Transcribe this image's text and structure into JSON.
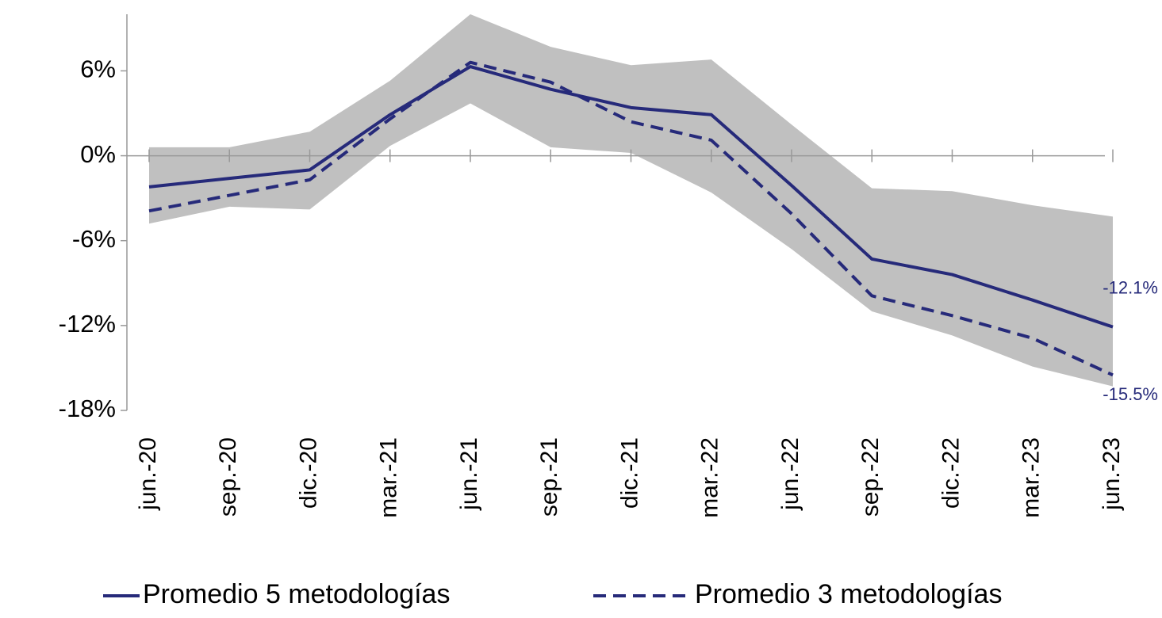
{
  "chart_data": {
    "type": "line",
    "categories": [
      "jun.-20",
      "sep.-20",
      "dic.-20",
      "mar.-21",
      "jun.-21",
      "sep.-21",
      "dic.-21",
      "mar.-22",
      "jun.-22",
      "sep.-22",
      "dic.-22",
      "mar.-23",
      "jun.-23"
    ],
    "series": [
      {
        "name": "Promedio 5 metodologías",
        "color": "#262a7a",
        "dash": false,
        "values": [
          -2.2,
          -1.6,
          -1.0,
          2.9,
          6.3,
          4.7,
          3.4,
          2.9,
          -2.1,
          -7.3,
          -8.4,
          -10.2,
          -12.1
        ],
        "value_labels": [
          null,
          null,
          null,
          null,
          null,
          null,
          null,
          null,
          null,
          null,
          null,
          null,
          "-12.1%"
        ]
      },
      {
        "name": "Promedio 3 metodologías",
        "color": "#262a7a",
        "dash": true,
        "values": [
          -3.9,
          -2.8,
          -1.7,
          2.6,
          6.6,
          5.2,
          2.4,
          1.1,
          -4.1,
          -9.9,
          -11.3,
          -12.9,
          -15.5
        ],
        "value_labels": [
          null,
          null,
          null,
          null,
          null,
          null,
          null,
          null,
          null,
          null,
          null,
          null,
          "-15.5%"
        ]
      }
    ],
    "band": {
      "color": "#c0c0c0",
      "upper": [
        0.6,
        0.6,
        1.7,
        5.3,
        10.0,
        7.7,
        6.4,
        6.8,
        2.2,
        -2.3,
        -2.5,
        -3.5,
        -4.3
      ],
      "lower": [
        -4.8,
        -3.6,
        -3.8,
        0.7,
        3.7,
        0.6,
        0.2,
        -2.6,
        -6.6,
        -11.0,
        -12.7,
        -14.9,
        -16.3
      ]
    },
    "ylim": [
      -18,
      10
    ],
    "yticks": [
      {
        "value": -18,
        "label": "-18%"
      },
      {
        "value": -12,
        "label": "-12%"
      },
      {
        "value": -6,
        "label": "-6%"
      },
      {
        "value": 0,
        "label": "0%"
      },
      {
        "value": 6,
        "label": "6%"
      }
    ],
    "legend": "bottom"
  }
}
